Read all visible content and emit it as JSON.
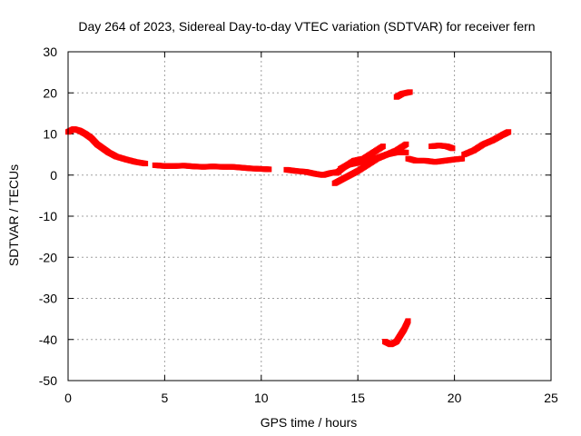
{
  "chart_data": {
    "type": "scatter",
    "title": "Day 264 of 2023, Sidereal Day-to-day VTEC variation (SDTVAR) for receiver fern",
    "xlabel": "GPS time / hours",
    "ylabel": "SDTVAR / TECUs",
    "xlim": [
      0,
      25
    ],
    "ylim": [
      -50,
      30
    ],
    "xticks": [
      0,
      5,
      10,
      15,
      20,
      25
    ],
    "yticks": [
      -50,
      -40,
      -30,
      -20,
      -10,
      0,
      10,
      20,
      30
    ],
    "grid": true,
    "marker_color": "#ff0000",
    "series": [
      {
        "name": "main-trace-1",
        "points": [
          [
            0.0,
            10.5
          ],
          [
            0.3,
            11.2
          ],
          [
            0.6,
            10.8
          ],
          [
            0.9,
            10.0
          ],
          [
            1.2,
            9.0
          ],
          [
            1.5,
            7.5
          ],
          [
            1.8,
            6.5
          ],
          [
            2.1,
            5.5
          ],
          [
            2.5,
            4.5
          ],
          [
            3.0,
            3.8
          ],
          [
            3.5,
            3.2
          ],
          [
            4.0,
            2.8
          ]
        ]
      },
      {
        "name": "main-trace-2",
        "points": [
          [
            4.5,
            2.4
          ],
          [
            5.0,
            2.2
          ],
          [
            5.5,
            2.2
          ],
          [
            6.0,
            2.3
          ],
          [
            6.5,
            2.1
          ],
          [
            7.0,
            2.0
          ],
          [
            7.5,
            2.1
          ],
          [
            8.0,
            2.0
          ],
          [
            8.5,
            2.0
          ],
          [
            9.0,
            1.8
          ],
          [
            9.5,
            1.6
          ],
          [
            10.0,
            1.5
          ],
          [
            10.4,
            1.4
          ]
        ]
      },
      {
        "name": "main-trace-3",
        "points": [
          [
            11.3,
            1.3
          ],
          [
            11.8,
            1.0
          ],
          [
            12.3,
            0.8
          ],
          [
            12.8,
            0.3
          ],
          [
            13.2,
            0.0
          ],
          [
            13.6,
            0.5
          ],
          [
            14.0,
            0.8
          ]
        ]
      },
      {
        "name": "main-trace-4",
        "points": [
          [
            13.8,
            -2.0
          ],
          [
            14.2,
            -1.0
          ],
          [
            14.6,
            0.0
          ],
          [
            15.0,
            1.0
          ],
          [
            15.5,
            2.5
          ],
          [
            16.0,
            4.0
          ],
          [
            16.5,
            5.0
          ],
          [
            17.0,
            5.5
          ],
          [
            17.5,
            5.5
          ]
        ]
      },
      {
        "name": "main-trace-5",
        "points": [
          [
            13.9,
            0.5
          ],
          [
            14.3,
            2.0
          ],
          [
            14.8,
            3.5
          ],
          [
            15.3,
            4.0
          ],
          [
            15.8,
            5.5
          ],
          [
            16.3,
            7.0
          ]
        ]
      },
      {
        "name": "main-trace-6",
        "points": [
          [
            14.1,
            1.5
          ],
          [
            14.5,
            2.5
          ],
          [
            15.0,
            3.0
          ],
          [
            15.5,
            3.5
          ],
          [
            16.0,
            4.2
          ],
          [
            16.5,
            5.0
          ],
          [
            17.0,
            6.0
          ],
          [
            17.5,
            7.5
          ]
        ]
      },
      {
        "name": "main-trace-7",
        "points": [
          [
            17.6,
            4.0
          ],
          [
            18.0,
            3.5
          ],
          [
            18.5,
            3.5
          ],
          [
            19.0,
            3.2
          ],
          [
            19.5,
            3.5
          ],
          [
            20.0,
            3.8
          ],
          [
            20.4,
            4.0
          ]
        ]
      },
      {
        "name": "main-trace-8",
        "points": [
          [
            18.8,
            7.0
          ],
          [
            19.2,
            7.2
          ],
          [
            19.6,
            7.0
          ],
          [
            19.9,
            6.5
          ]
        ]
      },
      {
        "name": "main-trace-9",
        "points": [
          [
            20.5,
            5.0
          ],
          [
            21.0,
            6.0
          ],
          [
            21.5,
            7.5
          ],
          [
            22.0,
            8.5
          ],
          [
            22.5,
            9.8
          ],
          [
            22.8,
            10.5
          ]
        ]
      },
      {
        "name": "upper-arc",
        "points": [
          [
            17.0,
            19.0
          ],
          [
            17.3,
            19.8
          ],
          [
            17.7,
            20.2
          ]
        ]
      },
      {
        "name": "lower-arc",
        "points": [
          [
            16.4,
            -40.5
          ],
          [
            16.7,
            -41.2
          ],
          [
            17.0,
            -40.5
          ],
          [
            17.2,
            -39.0
          ],
          [
            17.4,
            -37.5
          ],
          [
            17.6,
            -35.5
          ]
        ]
      }
    ]
  }
}
